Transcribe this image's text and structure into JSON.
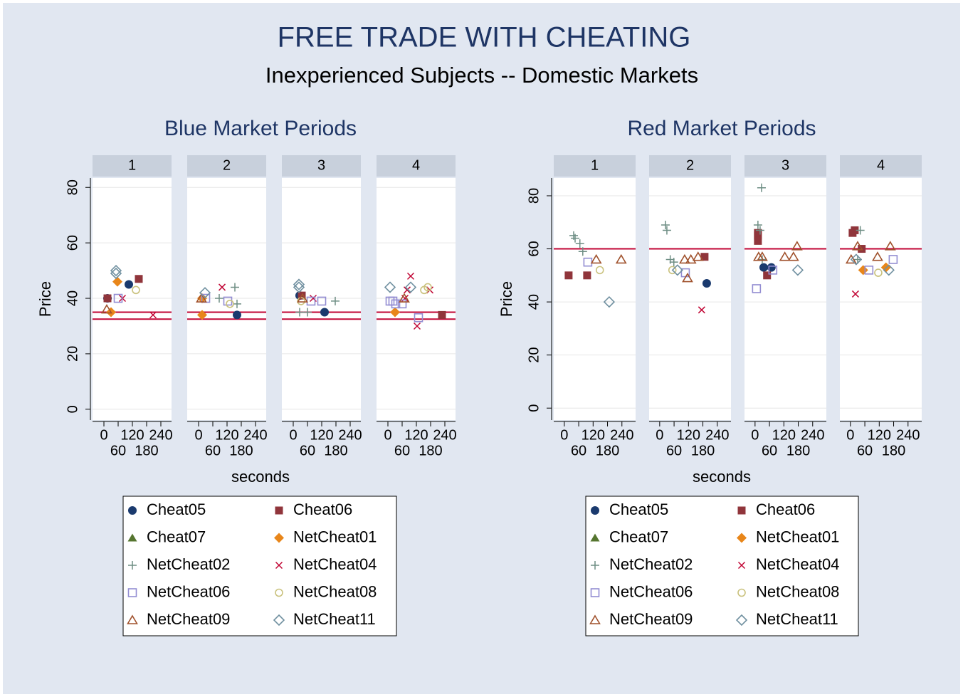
{
  "title": "FREE TRADE WITH CHEATING",
  "subtitle": "Inexperienced Subjects -- Domestic Markets",
  "chart_data": [
    {
      "type": "scatter",
      "title": "Blue Market Periods",
      "facets": [
        "1",
        "2",
        "3",
        "4"
      ],
      "xlabel": "seconds",
      "ylabel": "Price",
      "xlim": [
        -48,
        285
      ],
      "xticks": [
        0,
        60,
        120,
        180,
        240
      ],
      "ylim": [
        -3.9,
        83.4
      ],
      "yticks": [
        0,
        20,
        40,
        60,
        80
      ],
      "grid": true,
      "hlines": [
        35,
        32.5
      ],
      "hline_color": "#c10534",
      "series": [
        {
          "name": "Cheat05",
          "color": "#1a3a6e",
          "marker": "circle",
          "facet": [
            "1",
            "1",
            "2",
            "3",
            "3"
          ],
          "x": [
            15,
            105,
            162,
            27,
            132
          ],
          "y": [
            40,
            45,
            34,
            41,
            35
          ]
        },
        {
          "name": "Cheat06",
          "color": "#90353b",
          "marker": "square",
          "facet": [
            "1",
            "1",
            "3",
            "4"
          ],
          "x": [
            15,
            147,
            36,
            228
          ],
          "y": [
            40,
            47,
            41,
            34
          ]
        },
        {
          "name": "Cheat07",
          "color": "#55752f",
          "marker": "triangle",
          "facet": [],
          "x": [],
          "y": []
        },
        {
          "name": "NetCheat01",
          "color": "#e8861a",
          "marker": "diamond",
          "facet": [
            "1",
            "1",
            "2",
            "2",
            "4"
          ],
          "x": [
            57,
            30,
            15,
            15,
            30
          ],
          "y": [
            46,
            35,
            34,
            40,
            35
          ]
        },
        {
          "name": "NetCheat02",
          "color": "#6e8e84",
          "marker": "plus",
          "facet": [
            "2",
            "2",
            "2",
            "3",
            "3",
            "3"
          ],
          "x": [
            87,
            153,
            162,
            27,
            60,
            177
          ],
          "y": [
            40,
            44,
            38,
            35,
            35,
            39
          ]
        },
        {
          "name": "NetCheat04",
          "color": "#c10534",
          "marker": "x",
          "facet": [
            "1",
            "1",
            "2",
            "3",
            "4",
            "4",
            "4",
            "4",
            "4"
          ],
          "x": [
            78,
            207,
            99,
            84,
            96,
            81,
            123,
            177,
            72
          ],
          "y": [
            40,
            34,
            44,
            40,
            48,
            43,
            30,
            43,
            40
          ]
        },
        {
          "name": "NetCheat06",
          "color": "#938dd2",
          "marker": "square-hollow",
          "facet": [
            "1",
            "2",
            "2",
            "3",
            "3",
            "4",
            "4",
            "4",
            "4",
            "4"
          ],
          "x": [
            60,
            30,
            123,
            75,
            120,
            9,
            21,
            33,
            60,
            129
          ],
          "y": [
            40,
            40,
            39,
            39,
            39,
            39,
            39,
            38,
            38,
            33
          ]
        },
        {
          "name": "NetCheat08",
          "color": "#cac27e",
          "marker": "circle-hollow",
          "facet": [
            "1",
            "2",
            "3",
            "4",
            "4"
          ],
          "x": [
            135,
            132,
            33,
            153,
            168
          ],
          "y": [
            43,
            38,
            39,
            43,
            44
          ]
        },
        {
          "name": "NetCheat09",
          "color": "#a0522d",
          "marker": "triangle-hollow",
          "facet": [
            "1",
            "2",
            "3",
            "4"
          ],
          "x": [
            12,
            12,
            39,
            69
          ],
          "y": [
            36,
            40,
            40,
            40
          ]
        },
        {
          "name": "NetCheat11",
          "color": "#7090a0",
          "marker": "diamond-hollow",
          "facet": [
            "1",
            "1",
            "2",
            "3",
            "3",
            "4",
            "4"
          ],
          "x": [
            51,
            51,
            27,
            24,
            24,
            9,
            96
          ],
          "y": [
            50,
            49,
            42,
            45,
            44,
            44,
            44
          ]
        }
      ]
    },
    {
      "type": "scatter",
      "title": "Red Market Periods",
      "facets": [
        "1",
        "2",
        "3",
        "4"
      ],
      "xlabel": "seconds",
      "ylabel": "Price",
      "xlim": [
        -44,
        297
      ],
      "xticks": [
        0,
        60,
        120,
        180,
        240
      ],
      "ylim": [
        -4.5,
        86.7
      ],
      "yticks": [
        0,
        20,
        40,
        60,
        80
      ],
      "grid": true,
      "hlines": [
        60
      ],
      "hline_color": "#c10534",
      "series": [
        {
          "name": "Cheat05",
          "color": "#1a3a6e",
          "marker": "circle",
          "facet": [
            "2",
            "3",
            "3"
          ],
          "x": [
            196,
            36,
            68
          ],
          "y": [
            47,
            53,
            53
          ]
        },
        {
          "name": "Cheat06",
          "color": "#90353b",
          "marker": "square",
          "facet": [
            "1",
            "1",
            "2",
            "3",
            "3",
            "3",
            "3",
            "4",
            "4",
            "4"
          ],
          "x": [
            18,
            95,
            187,
            12,
            12,
            12,
            50,
            9,
            18,
            47
          ],
          "y": [
            50,
            50,
            57,
            66,
            65,
            63,
            50,
            66,
            67,
            60
          ]
        },
        {
          "name": "Cheat07",
          "color": "#55752f",
          "marker": "triangle",
          "facet": [],
          "x": [],
          "y": []
        },
        {
          "name": "NetCheat01",
          "color": "#e8861a",
          "marker": "diamond",
          "facet": [
            "4",
            "4"
          ],
          "x": [
            53,
            148
          ],
          "y": [
            52,
            53
          ]
        },
        {
          "name": "NetCheat02",
          "color": "#6e8e84",
          "marker": "plus",
          "facet": [
            "1",
            "1",
            "1",
            "1",
            "2",
            "2",
            "2",
            "2",
            "3",
            "3",
            "3",
            "3",
            "4",
            "4"
          ],
          "x": [
            39,
            45,
            65,
            77,
            24,
            30,
            44,
            59,
            27,
            12,
            21,
            30,
            41,
            30
          ],
          "y": [
            65,
            64,
            62,
            59,
            69,
            67,
            56,
            55,
            83,
            69,
            67,
            56,
            67,
            56
          ]
        },
        {
          "name": "NetCheat04",
          "color": "#c10534",
          "marker": "x",
          "facet": [
            "2",
            "4"
          ],
          "x": [
            175,
            21
          ],
          "y": [
            37,
            43
          ]
        },
        {
          "name": "NetCheat06",
          "color": "#938dd2",
          "marker": "square-hollow",
          "facet": [
            "1",
            "2",
            "3",
            "3",
            "4",
            "4"
          ],
          "x": [
            98,
            107,
            6,
            74,
            77,
            178
          ],
          "y": [
            55,
            51,
            45,
            52,
            52,
            56
          ]
        },
        {
          "name": "NetCheat08",
          "color": "#cac27e",
          "marker": "circle-hollow",
          "facet": [
            "1",
            "2",
            "4"
          ],
          "x": [
            148,
            53,
            116
          ],
          "y": [
            52,
            52,
            51
          ]
        },
        {
          "name": "NetCheat09",
          "color": "#a0522d",
          "marker": "triangle-hollow",
          "facet": [
            "1",
            "1",
            "2",
            "2",
            "2",
            "2",
            "3",
            "3",
            "3",
            "3",
            "3",
            "4",
            "4",
            "4",
            "4"
          ],
          "x": [
            133,
            237,
            104,
            116,
            130,
            160,
            15,
            30,
            124,
            160,
            175,
            3,
            30,
            113,
            166
          ],
          "y": [
            56,
            56,
            56,
            49,
            56,
            57,
            57,
            57,
            57,
            57,
            61,
            56,
            61,
            57,
            61
          ]
        },
        {
          "name": "NetCheat11",
          "color": "#7090a0",
          "marker": "diamond-hollow",
          "facet": [
            "1",
            "2",
            "3",
            "4",
            "4"
          ],
          "x": [
            187,
            74,
            178,
            24,
            160
          ],
          "y": [
            40,
            52,
            52,
            56,
            52
          ]
        }
      ]
    }
  ]
}
